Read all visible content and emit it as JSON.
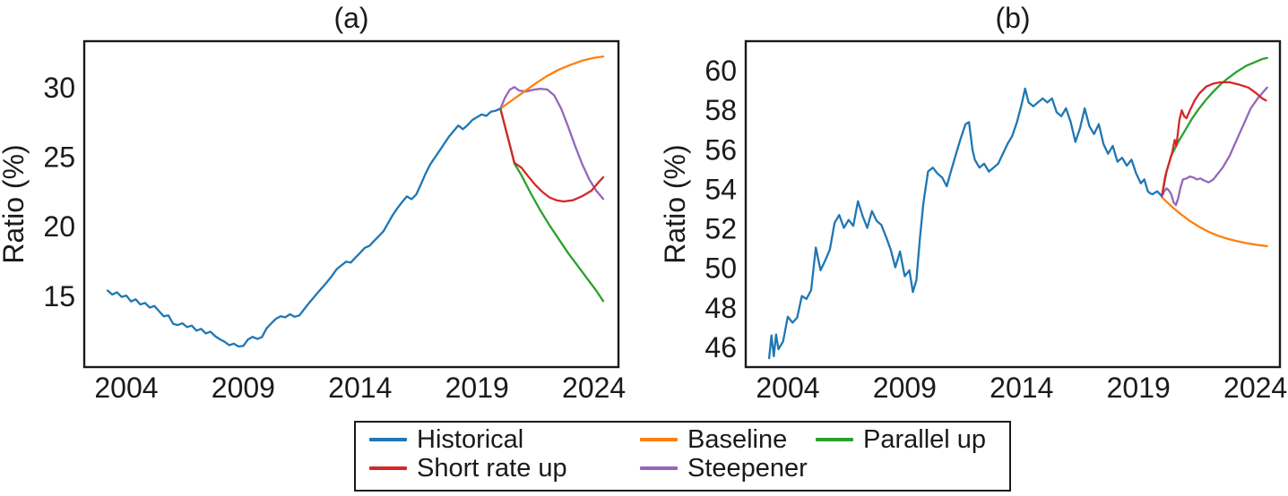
{
  "figure": {
    "panel_a_title": "(a)",
    "panel_b_title": "(b)",
    "y_axis_label": "Ratio (%)",
    "background_color": "#ffffff",
    "frame_color": "#1a1a1a"
  },
  "legend": {
    "position": "below-figure",
    "items": [
      {
        "label": "Historical",
        "color": "#1f77b4"
      },
      {
        "label": "Short rate up",
        "color": "#d62728"
      },
      {
        "label": "Baseline",
        "color": "#ff7f0e"
      },
      {
        "label": "Steepener",
        "color": "#9467bd"
      },
      {
        "label": "Parallel up",
        "color": "#2ca02c"
      }
    ]
  },
  "chart_data": [
    {
      "type": "line",
      "title": "(a)",
      "xlabel": "",
      "ylabel": "Ratio (%)",
      "xlim": [
        2002.2,
        2025.05
      ],
      "ylim": [
        9.9,
        33.35
      ],
      "xticks": [
        2004,
        2009,
        2014,
        2019,
        2024
      ],
      "yticks": [
        15,
        20,
        25,
        30
      ],
      "grid": false,
      "series": [
        {
          "name": "Parallel up",
          "color": "#2ca02c",
          "x": [
            2020.0,
            2020.2,
            2020.4,
            2020.6,
            2020.9,
            2021.3,
            2021.7,
            2022.1,
            2022.5,
            2022.9,
            2023.3,
            2023.7,
            2024.1,
            2024.4
          ],
          "y": [
            28.5,
            27.2,
            25.9,
            24.55,
            23.7,
            22.4,
            21.2,
            20.1,
            19.1,
            18.1,
            17.2,
            16.3,
            15.4,
            14.65
          ]
        },
        {
          "name": "Steepener",
          "color": "#9467bd",
          "x": [
            2020.0,
            2020.2,
            2020.4,
            2020.6,
            2020.8,
            2021.1,
            2021.4,
            2021.7,
            2022.0,
            2022.3,
            2022.6,
            2022.9,
            2023.2,
            2023.5,
            2023.8,
            2024.1,
            2024.4
          ],
          "y": [
            28.5,
            29.3,
            29.85,
            30.05,
            29.8,
            29.72,
            29.85,
            29.92,
            29.88,
            29.45,
            28.5,
            27.2,
            25.8,
            24.5,
            23.4,
            22.6,
            22.0
          ]
        },
        {
          "name": "Baseline",
          "color": "#ff7f0e",
          "x": [
            2020.0,
            2020.5,
            2021.0,
            2021.5,
            2022.0,
            2022.5,
            2023.0,
            2023.5,
            2024.0,
            2024.4
          ],
          "y": [
            28.5,
            29.1,
            29.7,
            30.3,
            30.85,
            31.3,
            31.65,
            31.95,
            32.15,
            32.25
          ]
        },
        {
          "name": "Short rate up",
          "color": "#d62728",
          "x": [
            2020.0,
            2020.2,
            2020.4,
            2020.6,
            2020.9,
            2021.2,
            2021.5,
            2021.8,
            2022.1,
            2022.4,
            2022.7,
            2023.1,
            2023.5,
            2023.9,
            2024.2,
            2024.4
          ],
          "y": [
            28.5,
            27.2,
            25.9,
            24.6,
            24.25,
            23.6,
            23.0,
            22.5,
            22.1,
            21.9,
            21.82,
            21.9,
            22.2,
            22.6,
            23.2,
            23.55
          ]
        },
        {
          "name": "Historical",
          "color": "#1f77b4",
          "x": [
            2003.2,
            2003.4,
            2003.6,
            2003.8,
            2004.0,
            2004.2,
            2004.4,
            2004.6,
            2004.8,
            2005.0,
            2005.2,
            2005.4,
            2005.6,
            2005.8,
            2006.0,
            2006.2,
            2006.4,
            2006.6,
            2006.8,
            2007.0,
            2007.2,
            2007.4,
            2007.6,
            2007.8,
            2008.0,
            2008.2,
            2008.4,
            2008.6,
            2008.8,
            2009.0,
            2009.2,
            2009.4,
            2009.6,
            2009.8,
            2010.0,
            2010.2,
            2010.4,
            2010.6,
            2010.8,
            2011.0,
            2011.2,
            2011.4,
            2011.6,
            2011.8,
            2012.0,
            2012.2,
            2012.4,
            2012.6,
            2012.8,
            2013.0,
            2013.2,
            2013.4,
            2013.6,
            2013.8,
            2014.0,
            2014.2,
            2014.4,
            2014.6,
            2014.8,
            2015.0,
            2015.2,
            2015.4,
            2015.6,
            2015.8,
            2016.0,
            2016.2,
            2016.4,
            2016.6,
            2016.8,
            2017.0,
            2017.2,
            2017.4,
            2017.6,
            2017.8,
            2018.0,
            2018.2,
            2018.4,
            2018.6,
            2018.8,
            2019.0,
            2019.2,
            2019.4,
            2019.6,
            2019.8,
            2020.0
          ],
          "y": [
            15.4,
            15.12,
            15.28,
            14.95,
            15.05,
            14.62,
            14.78,
            14.4,
            14.52,
            14.18,
            14.3,
            13.92,
            13.55,
            13.62,
            13.02,
            12.92,
            13.05,
            12.78,
            12.88,
            12.52,
            12.65,
            12.32,
            12.45,
            12.12,
            11.9,
            11.72,
            11.48,
            11.58,
            11.38,
            11.42,
            11.88,
            12.08,
            11.92,
            12.05,
            12.68,
            13.05,
            13.38,
            13.55,
            13.48,
            13.7,
            13.52,
            13.62,
            14.05,
            14.48,
            14.88,
            15.28,
            15.65,
            16.05,
            16.48,
            16.95,
            17.22,
            17.48,
            17.42,
            17.78,
            18.12,
            18.48,
            18.62,
            18.98,
            19.32,
            19.68,
            20.28,
            20.85,
            21.35,
            21.78,
            22.18,
            21.98,
            22.32,
            23.05,
            23.82,
            24.48,
            24.98,
            25.48,
            25.98,
            26.48,
            26.88,
            27.28,
            27.02,
            27.32,
            27.68,
            27.88,
            28.08,
            27.98,
            28.28,
            28.35,
            28.5
          ]
        }
      ]
    },
    {
      "type": "line",
      "title": "(b)",
      "xlabel": "",
      "ylabel": "Ratio (%)",
      "xlim": [
        2002.2,
        2025.05
      ],
      "ylim": [
        45.0,
        61.5
      ],
      "xticks": [
        2004,
        2009,
        2014,
        2019,
        2024
      ],
      "yticks": [
        46,
        48,
        50,
        52,
        54,
        56,
        58,
        60
      ],
      "grid": false,
      "series": [
        {
          "name": "Parallel up",
          "color": "#2ca02c",
          "x": [
            2020.0,
            2020.2,
            2020.4,
            2020.7,
            2021.0,
            2021.3,
            2021.6,
            2021.9,
            2022.2,
            2022.5,
            2022.8,
            2023.2,
            2023.6,
            2024.0,
            2024.3,
            2024.5
          ],
          "y": [
            53.65,
            54.9,
            55.7,
            56.4,
            57.0,
            57.6,
            58.1,
            58.55,
            58.95,
            59.3,
            59.6,
            59.95,
            60.25,
            60.45,
            60.6,
            60.65
          ]
        },
        {
          "name": "Steepener",
          "color": "#9467bd",
          "x": [
            2020.0,
            2020.1,
            2020.2,
            2020.3,
            2020.4,
            2020.5,
            2020.6,
            2020.7,
            2020.8,
            2020.9,
            2021.05,
            2021.2,
            2021.35,
            2021.5,
            2021.65,
            2021.8,
            2022.0,
            2022.2,
            2022.4,
            2022.6,
            2022.9,
            2023.2,
            2023.5,
            2023.8,
            2024.1,
            2024.35,
            2024.5
          ],
          "y": [
            53.65,
            53.9,
            54.05,
            53.95,
            53.75,
            53.35,
            53.2,
            53.55,
            54.1,
            54.5,
            54.55,
            54.65,
            54.6,
            54.5,
            54.55,
            54.45,
            54.35,
            54.5,
            54.8,
            55.1,
            55.7,
            56.5,
            57.3,
            58.1,
            58.6,
            58.95,
            59.15
          ]
        },
        {
          "name": "Baseline",
          "color": "#ff7f0e",
          "x": [
            2020.0,
            2020.4,
            2020.8,
            2021.2,
            2021.6,
            2022.0,
            2022.4,
            2022.8,
            2023.2,
            2023.6,
            2024.0,
            2024.3,
            2024.5
          ],
          "y": [
            53.6,
            53.15,
            52.75,
            52.4,
            52.1,
            51.85,
            51.65,
            51.5,
            51.38,
            51.28,
            51.2,
            51.15,
            51.12
          ]
        },
        {
          "name": "Short rate up",
          "color": "#d62728",
          "x": [
            2020.0,
            2020.15,
            2020.3,
            2020.45,
            2020.55,
            2020.62,
            2020.75,
            2020.85,
            2020.95,
            2021.05,
            2021.2,
            2021.4,
            2021.6,
            2021.9,
            2022.2,
            2022.5,
            2022.9,
            2023.3,
            2023.7,
            2024.0,
            2024.3,
            2024.45
          ],
          "y": [
            53.65,
            54.7,
            55.3,
            55.9,
            56.5,
            56.2,
            57.5,
            58.0,
            57.7,
            57.6,
            58.0,
            58.5,
            58.85,
            59.2,
            59.35,
            59.42,
            59.42,
            59.3,
            59.15,
            58.9,
            58.6,
            58.5
          ]
        },
        {
          "name": "Historical",
          "color": "#1f77b4",
          "x": [
            2003.2,
            2003.3,
            2003.4,
            2003.5,
            2003.6,
            2003.8,
            2004.0,
            2004.2,
            2004.4,
            2004.6,
            2004.8,
            2005.0,
            2005.2,
            2005.4,
            2005.6,
            2005.8,
            2006.0,
            2006.2,
            2006.4,
            2006.6,
            2006.8,
            2007.0,
            2007.2,
            2007.4,
            2007.6,
            2007.8,
            2008.0,
            2008.2,
            2008.4,
            2008.6,
            2008.8,
            2009.0,
            2009.2,
            2009.35,
            2009.5,
            2009.65,
            2009.8,
            2010.0,
            2010.2,
            2010.4,
            2010.6,
            2010.8,
            2011.0,
            2011.2,
            2011.4,
            2011.6,
            2011.75,
            2011.9,
            2012.0,
            2012.2,
            2012.4,
            2012.6,
            2012.8,
            2013.0,
            2013.2,
            2013.4,
            2013.6,
            2013.8,
            2014.0,
            2014.15,
            2014.3,
            2014.5,
            2014.7,
            2014.9,
            2015.1,
            2015.3,
            2015.5,
            2015.7,
            2015.9,
            2016.1,
            2016.3,
            2016.5,
            2016.7,
            2016.9,
            2017.1,
            2017.3,
            2017.5,
            2017.7,
            2017.9,
            2018.1,
            2018.3,
            2018.5,
            2018.7,
            2018.9,
            2019.1,
            2019.25,
            2019.4,
            2019.5,
            2019.6,
            2019.8,
            2020.0
          ],
          "y": [
            45.45,
            46.6,
            45.55,
            46.65,
            45.9,
            46.3,
            47.55,
            47.25,
            47.5,
            48.6,
            48.45,
            48.9,
            51.05,
            49.9,
            50.4,
            50.95,
            52.3,
            52.7,
            52.05,
            52.45,
            52.15,
            53.4,
            52.65,
            52.05,
            52.9,
            52.4,
            52.2,
            51.6,
            50.95,
            50.05,
            50.85,
            49.6,
            49.9,
            48.8,
            49.4,
            51.5,
            53.3,
            54.9,
            55.1,
            54.8,
            54.6,
            54.15,
            55.0,
            55.8,
            56.6,
            57.3,
            57.4,
            56.0,
            55.5,
            55.1,
            55.3,
            54.9,
            55.1,
            55.3,
            55.8,
            56.3,
            56.7,
            57.4,
            58.3,
            59.1,
            58.4,
            58.2,
            58.4,
            58.6,
            58.4,
            58.6,
            57.9,
            57.7,
            58.1,
            57.4,
            56.4,
            57.1,
            58.1,
            57.2,
            56.8,
            57.3,
            56.3,
            55.8,
            56.2,
            55.4,
            55.6,
            55.2,
            55.5,
            54.8,
            54.3,
            54.5,
            53.9,
            53.8,
            53.75,
            53.9,
            53.65
          ]
        }
      ]
    }
  ]
}
